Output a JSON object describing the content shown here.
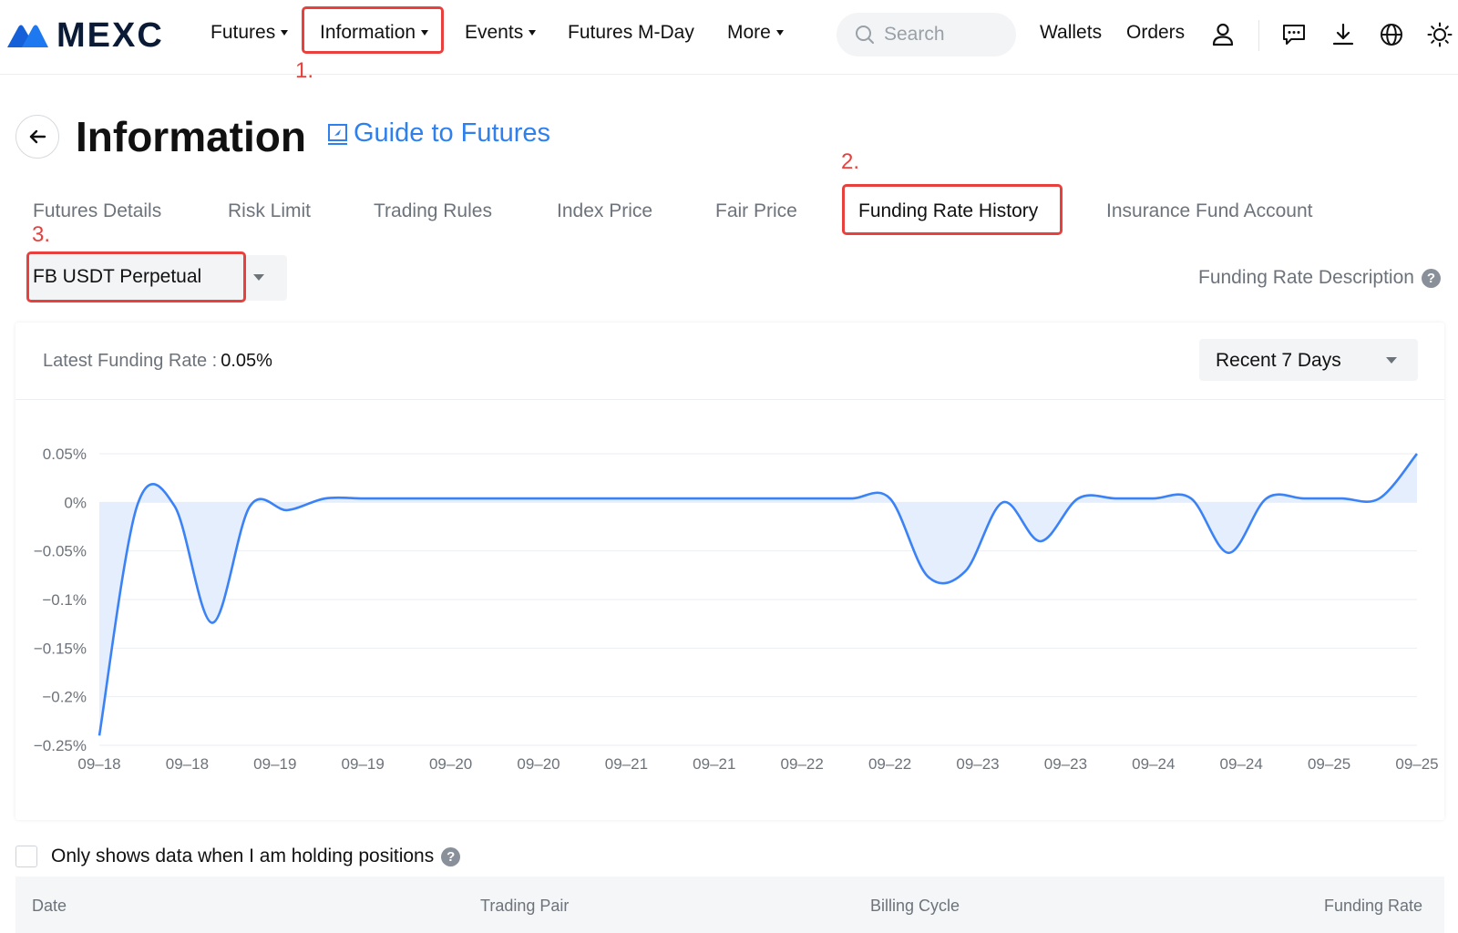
{
  "brand": {
    "name": "MEXC",
    "accent": "#2f80ed",
    "annotation_color": "#e8403c"
  },
  "nav": {
    "items": [
      {
        "label": "Futures",
        "dropdown": true
      },
      {
        "label": "Information",
        "dropdown": true
      },
      {
        "label": "Events",
        "dropdown": true
      },
      {
        "label": "Futures M-Day",
        "dropdown": false
      },
      {
        "label": "More",
        "dropdown": true
      }
    ],
    "search_placeholder": "Search",
    "wallets": "Wallets",
    "orders": "Orders",
    "icons": [
      "user-icon",
      "message-icon",
      "download-icon",
      "globe-icon",
      "sun-icon"
    ]
  },
  "annotations": {
    "n1": "1.",
    "n2": "2.",
    "n3": "3."
  },
  "header": {
    "title": "Information",
    "guide_label": "Guide to Futures"
  },
  "tabs": [
    {
      "label": "Futures Details"
    },
    {
      "label": "Risk Limit"
    },
    {
      "label": "Trading Rules"
    },
    {
      "label": "Index Price"
    },
    {
      "label": "Fair Price"
    },
    {
      "label": "Funding Rate History",
      "active": true
    },
    {
      "label": "Insurance Fund Account"
    }
  ],
  "contract_select": {
    "value": "FB USDT Perpetual"
  },
  "funding_description": "Funding Rate Description",
  "latest": {
    "label": "Latest Funding Rate :",
    "value": "0.05%"
  },
  "range_select": {
    "value": "Recent 7 Days"
  },
  "chart_data": {
    "type": "area",
    "y_unit": "%",
    "ylim": [
      -0.25,
      0.05
    ],
    "y_ticks": [
      0.05,
      0,
      -0.05,
      -0.1,
      -0.15,
      -0.2,
      -0.25
    ],
    "y_tick_labels": [
      "0.05%",
      "0%",
      "−0.05%",
      "−0.1%",
      "−0.15%",
      "−0.2%",
      "−0.25%"
    ],
    "x_tick_labels": [
      "09–18",
      "09–18",
      "09–19",
      "09–19",
      "09–20",
      "09–20",
      "09–21",
      "09–21",
      "09–22",
      "09–22",
      "09–23",
      "09–23",
      "09–24",
      "09–24",
      "09–25",
      "09–25"
    ],
    "values": [
      -0.24,
      -0.004,
      -0.004,
      -0.124,
      -0.004,
      -0.008,
      0.004,
      0.004,
      0.004,
      0.004,
      0.004,
      0.004,
      0.004,
      0.004,
      0.004,
      0.004,
      0.004,
      0.004,
      0.004,
      0.004,
      0.004,
      0.004,
      -0.076,
      -0.071,
      0.0,
      -0.04,
      0.004,
      0.004,
      0.004,
      0.004,
      -0.052,
      0.004,
      0.004,
      0.004,
      0.004,
      0.05
    ],
    "line_color": "#3b82f6",
    "fill_color": "#e4eefc",
    "grid": true
  },
  "filter": {
    "label": "Only shows data when I am holding positions"
  },
  "table": {
    "columns": [
      "Date",
      "Trading Pair",
      "Billing Cycle",
      "Funding Rate"
    ]
  }
}
